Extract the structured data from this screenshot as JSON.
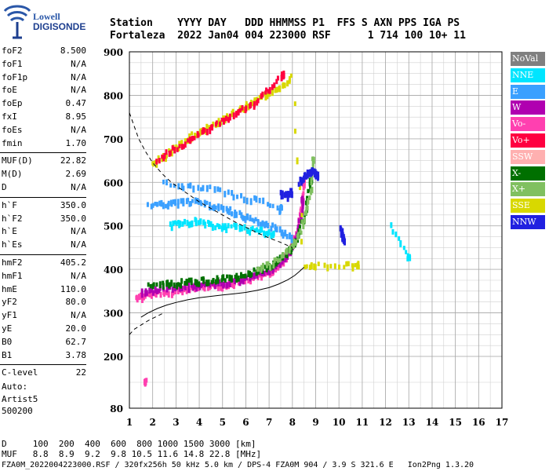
{
  "logo": {
    "line1": "Lowell",
    "line2": "DIGISONDE"
  },
  "header": {
    "line1": "Station    YYYY DAY   DDD HHMMSS P1  FFS S AXN PPS IGA PS",
    "line2": "Fortaleza  2022 Jan04 004 223000 RSF      1 714 100 10+ 11"
  },
  "params": [
    {
      "label": "foF2",
      "value": "8.500"
    },
    {
      "label": "foF1",
      "value": "N/A"
    },
    {
      "label": "foF1p",
      "value": "N/A"
    },
    {
      "label": "foE",
      "value": "N/A"
    },
    {
      "label": "foEp",
      "value": "0.47"
    },
    {
      "label": "fxI",
      "value": "8.95"
    },
    {
      "label": "foEs",
      "value": "N/A"
    },
    {
      "label": "fmin",
      "value": "1.70"
    },
    {
      "label": "MUF(D)",
      "value": "22.82"
    },
    {
      "label": "M(D)",
      "value": "2.69"
    },
    {
      "label": "D",
      "value": "N/A"
    },
    {
      "label": "h`F",
      "value": "350.0"
    },
    {
      "label": "h`F2",
      "value": "350.0"
    },
    {
      "label": "h`E",
      "value": "N/A"
    },
    {
      "label": "h`Es",
      "value": "N/A"
    },
    {
      "label": "hmF2",
      "value": "405.2"
    },
    {
      "label": "hmF1",
      "value": "N/A"
    },
    {
      "label": "hmE",
      "value": "110.0"
    },
    {
      "label": "yF2",
      "value": "80.0"
    },
    {
      "label": "yF1",
      "value": "N/A"
    },
    {
      "label": "yE",
      "value": "20.0"
    },
    {
      "label": "B0",
      "value": "62.7"
    },
    {
      "label": "B1",
      "value": "3.78"
    },
    {
      "label": "C-level",
      "value": "22"
    }
  ],
  "auto": {
    "line1": "Auto:",
    "line2": "Artist5",
    "line3": "500200"
  },
  "footer": {
    "line1": "D     100  200  400  600  800 1000 1500 3000 [km]",
    "line2": "MUF   8.8  8.9  9.2  9.8 10.5 11.6 14.8 22.8 [MHz]",
    "line3": "FZA0M_2022004223000.RSF / 320fx256h 50 kHz 5.0 km / DPS-4 FZA0M 904 / 3.9 S 321.6 E   Ion2Png 1.3.20"
  },
  "legend": [
    {
      "label": "NoVal",
      "color": "#808080",
      "text": "#ffffff"
    },
    {
      "label": "NNE",
      "color": "#00e5ff",
      "text": "#ffffff"
    },
    {
      "label": "E",
      "color": "#3aa0ff",
      "text": "#ffffff"
    },
    {
      "label": "W",
      "color": "#b000b0",
      "text": "#ffffff"
    },
    {
      "label": "Vo-",
      "color": "#ff40b0",
      "text": "#ffffff"
    },
    {
      "label": "Vo+",
      "color": "#ff0040",
      "text": "#ffffff"
    },
    {
      "label": "SSW",
      "color": "#ffb0b0",
      "text": "#ffffff"
    },
    {
      "label": "X-",
      "color": "#007000",
      "text": "#ffffff"
    },
    {
      "label": "X+",
      "color": "#80c060",
      "text": "#ffffff"
    },
    {
      "label": "SSE",
      "color": "#d8d800",
      "text": "#ffffff"
    },
    {
      "label": "NNW",
      "color": "#2020e0",
      "text": "#ffffff"
    }
  ],
  "chart_data": {
    "type": "scatter",
    "xlim": [
      1,
      17
    ],
    "ylim": [
      80,
      900
    ],
    "x_ticks": [
      "1",
      "2",
      "3",
      "4",
      "5",
      "6",
      "7",
      "8",
      "9",
      "10",
      "11",
      "12",
      "13",
      "14",
      "15",
      "16",
      "17"
    ],
    "y_ticks": [
      "80",
      "200",
      "300",
      "400",
      "500",
      "600",
      "700",
      "800",
      "900"
    ],
    "grid": true,
    "series": [
      {
        "color": "#ff40b0",
        "x": [
          1.3,
          1.6,
          2.0,
          2.5,
          3.0,
          3.5,
          4.0,
          4.5,
          5.0,
          5.5,
          6.0,
          6.5,
          7.0,
          7.3,
          7.6,
          7.9,
          8.1,
          8.3,
          8.45,
          8.5
        ],
        "y": [
          335,
          338,
          342,
          346,
          350,
          354,
          357,
          360,
          364,
          368,
          374,
          382,
          392,
          402,
          418,
          440,
          468,
          505,
          550,
          600
        ]
      },
      {
        "color": "#b000b0",
        "x": [
          1.5,
          2.0,
          2.5,
          3.0,
          3.5,
          4.0,
          4.5,
          5.0,
          5.5,
          6.0,
          6.5,
          7.0,
          7.4,
          7.8,
          8.1,
          8.3,
          8.45
        ],
        "y": [
          348,
          352,
          355,
          358,
          360,
          362,
          365,
          368,
          372,
          378,
          386,
          398,
          412,
          432,
          460,
          500,
          560
        ]
      },
      {
        "color": "#007000",
        "x": [
          1.8,
          2.5,
          3.0,
          3.5,
          4.0,
          4.5,
          5.0,
          5.5,
          6.0,
          6.5,
          7.0,
          7.4,
          7.8,
          8.2,
          8.5,
          8.8
        ],
        "y": [
          365,
          368,
          368,
          370,
          372,
          375,
          378,
          382,
          388,
          396,
          406,
          420,
          438,
          470,
          520,
          600
        ]
      },
      {
        "color": "#80c060",
        "x": [
          6.5,
          7.0,
          7.5,
          8.0,
          8.3,
          8.6,
          8.8,
          8.9
        ],
        "y": [
          398,
          410,
          426,
          452,
          480,
          530,
          580,
          650
        ]
      },
      {
        "color": "#3aa0ff",
        "x": [
          1.8,
          2.5,
          3.0,
          3.5,
          4.0,
          4.5,
          5.0,
          5.5,
          6.0,
          6.5,
          7.0,
          7.5,
          8.0,
          2.5,
          3.5,
          4.5,
          5.5,
          6.5,
          7.5
        ],
        "y": [
          550,
          550,
          552,
          555,
          555,
          545,
          545,
          530,
          520,
          510,
          500,
          490,
          470,
          600,
          590,
          585,
          570,
          560,
          540
        ]
      },
      {
        "color": "#00e5ff",
        "x": [
          2.8,
          3.2,
          3.8,
          4.2,
          4.8,
          5.2,
          5.8,
          6.2,
          6.8,
          7.2,
          12.2,
          13.0
        ],
        "y": [
          500,
          505,
          510,
          505,
          500,
          498,
          495,
          490,
          488,
          482,
          500,
          430
        ]
      },
      {
        "color": "#d8d800",
        "x": [
          2.0,
          2.5,
          3.0,
          3.5,
          4.0,
          4.5,
          5.0,
          5.5,
          6.0,
          6.5,
          7.0,
          7.5,
          8.0,
          8.5,
          9.0,
          10.2,
          10.8
        ],
        "y": [
          640,
          660,
          680,
          700,
          715,
          730,
          745,
          760,
          775,
          790,
          805,
          820,
          840,
          405,
          410,
          410,
          410
        ]
      },
      {
        "color": "#ff0040",
        "x": [
          2.2,
          2.8,
          3.4,
          4.0,
          4.6,
          5.2,
          5.8,
          6.4,
          7.0,
          7.6
        ],
        "y": [
          650,
          672,
          690,
          712,
          728,
          746,
          764,
          782,
          812,
          850
        ]
      },
      {
        "color": "#2020e0",
        "x": [
          8.3,
          8.5,
          8.7,
          8.9,
          9.0,
          9.1,
          7.5,
          7.8,
          8.0,
          10.1,
          10.2
        ],
        "y": [
          600,
          610,
          620,
          625,
          620,
          615,
          575,
          570,
          580,
          500,
          470
        ]
      },
      {
        "color": "#ff40b0",
        "x": [
          1.7
        ],
        "y": [
          140
        ]
      }
    ],
    "curves": [
      {
        "style": "solid",
        "x": [
          1.5,
          1.8,
          2.2,
          2.6,
          3.0,
          3.5,
          4.0,
          4.5,
          5.0,
          5.5,
          6.0,
          6.5,
          7.0,
          7.4,
          7.8,
          8.1,
          8.3,
          8.5
        ],
        "y": [
          290,
          300,
          310,
          318,
          324,
          330,
          335,
          338,
          341,
          344,
          347,
          352,
          358,
          366,
          376,
          386,
          395,
          405
        ]
      },
      {
        "style": "dashed",
        "x": [
          1.0,
          1.2,
          1.4,
          1.7,
          2.0,
          2.4,
          2.8,
          3.2,
          3.6,
          4.0,
          4.5,
          5.0,
          5.5,
          6.0,
          6.5,
          7.0,
          7.5,
          8.0
        ],
        "y": [
          760,
          730,
          700,
          670,
          645,
          620,
          600,
          585,
          570,
          555,
          540,
          525,
          510,
          497,
          484,
          472,
          462,
          450
        ]
      },
      {
        "style": "dashed",
        "x": [
          1.0,
          1.2,
          1.5,
          1.8,
          2.1,
          2.4
        ],
        "y": [
          250,
          262,
          272,
          282,
          290,
          298
        ]
      }
    ]
  }
}
